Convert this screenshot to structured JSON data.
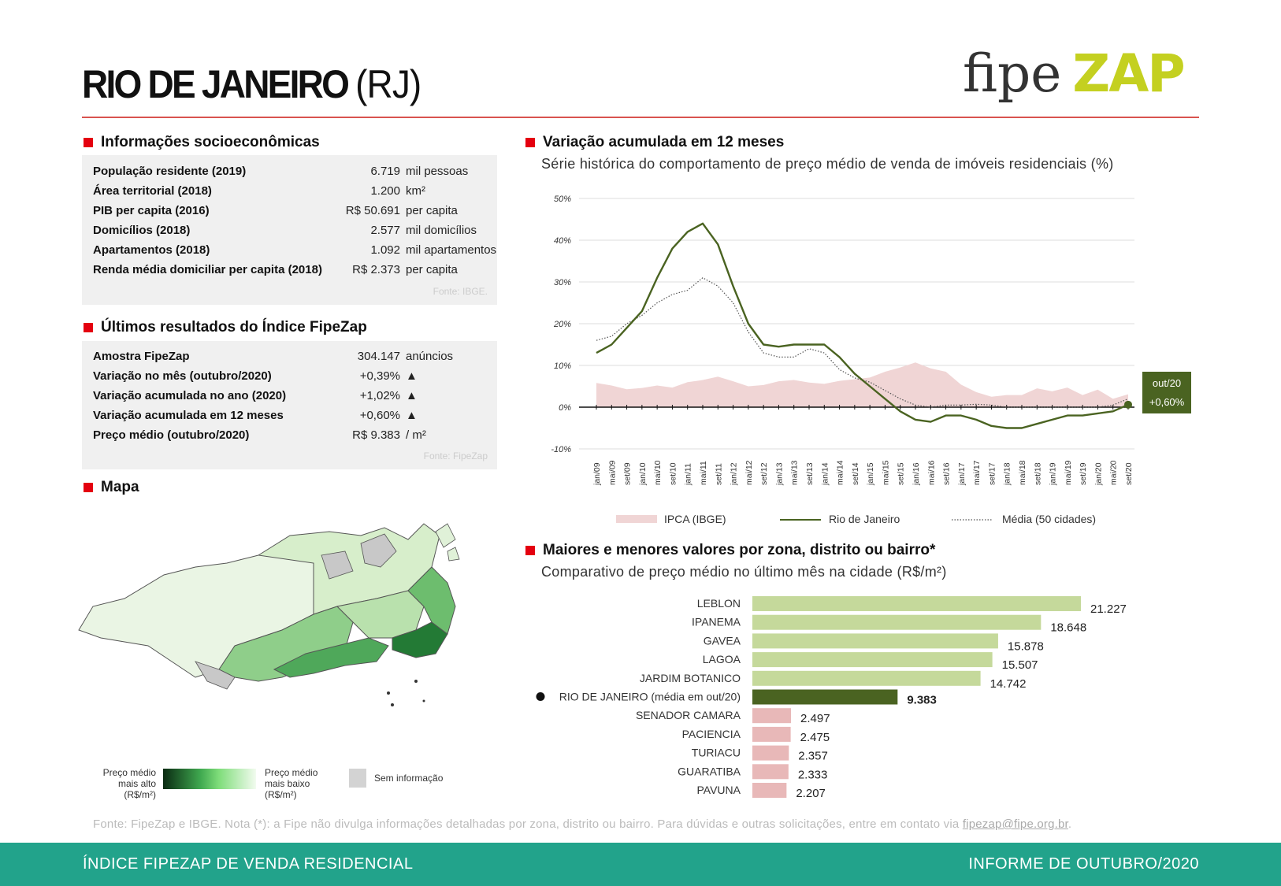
{
  "header": {
    "city": "RIO DE JANEIRO",
    "state": "(RJ)",
    "logo_fipe": "fipe",
    "logo_zap": "ZAP",
    "accent_color": "#e4000f"
  },
  "socio": {
    "title": "Informações socioeconômicas",
    "rows": [
      {
        "label": "População residente (2019)",
        "value": "6.719",
        "unit": "mil pessoas"
      },
      {
        "label": "Área territorial (2018)",
        "value": "1.200",
        "unit": "km²"
      },
      {
        "label": "PIB per capita (2016)",
        "value": "R$ 50.691",
        "unit": "per capita"
      },
      {
        "label": "Domicílios (2018)",
        "value": "2.577",
        "unit": "mil domicílios"
      },
      {
        "label": "Apartamentos (2018)",
        "value": "1.092",
        "unit": "mil apartamentos"
      },
      {
        "label": "Renda média domiciliar per capita (2018)",
        "value": "R$ 2.373",
        "unit": "per capita"
      }
    ],
    "source": "Fonte: IBGE."
  },
  "index": {
    "title": "Últimos resultados do Índice FipeZap",
    "rows": [
      {
        "label": "Amostra FipeZap",
        "value": "304.147",
        "unit": "anúncios"
      },
      {
        "label": "Variação no mês (outubro/2020)",
        "value": "+0,39%",
        "unit": "▲"
      },
      {
        "label": "Variação acumulada no ano (2020)",
        "value": "+1,02%",
        "unit": "▲"
      },
      {
        "label": "Variação acumulada em 12 meses",
        "value": "+0,60%",
        "unit": "▲"
      },
      {
        "label": "Preço médio (outubro/2020)",
        "value": "R$ 9.383",
        "unit": "/ m²"
      }
    ],
    "source": "Fonte: FipeZap"
  },
  "map": {
    "title": "Mapa",
    "legend_high": "Preço médio mais alto (R$/m²)",
    "legend_low": "Preço médio mais baixo (R$/m²)",
    "legend_na": "Sem informação"
  },
  "chart_data": [
    {
      "type": "line",
      "title": "Variação acumulada em 12 meses",
      "subtitle": "Série histórica do comportamento de preço médio de venda de imóveis residenciais (%)",
      "y_ticks": [
        "50%",
        "40%",
        "30%",
        "20%",
        "10%",
        "0%",
        "-10%"
      ],
      "ylim": [
        -10,
        50
      ],
      "x_ticks": [
        "jan/09",
        "mai/09",
        "set/09",
        "jan/10",
        "mai/10",
        "set/10",
        "jan/11",
        "mai/11",
        "set/11",
        "jan/12",
        "mai/12",
        "set/12",
        "jan/13",
        "mai/13",
        "set/13",
        "jan/14",
        "mai/14",
        "set/14",
        "jan/15",
        "mai/15",
        "set/15",
        "jan/16",
        "mai/16",
        "set/16",
        "jan/17",
        "mai/17",
        "set/17",
        "jan/18",
        "mai/18",
        "set/18",
        "jan/19",
        "mai/19",
        "set/19",
        "jan/20",
        "mai/20",
        "set/20"
      ],
      "series": [
        {
          "name": "IPCA (IBGE)",
          "kind": "area",
          "color": "#f0d5d5",
          "values": [
            5.8,
            5.2,
            4.3,
            4.6,
            5.2,
            4.7,
            6.0,
            6.5,
            7.3,
            6.2,
            5.0,
            5.3,
            6.2,
            6.5,
            5.9,
            5.6,
            6.3,
            6.7,
            7.1,
            8.5,
            9.5,
            10.7,
            9.3,
            8.5,
            5.4,
            3.6,
            2.5,
            2.9,
            2.9,
            4.5,
            3.8,
            4.7,
            2.9,
            4.2,
            2.0,
            3.1
          ]
        },
        {
          "name": "Rio de Janeiro",
          "kind": "line",
          "color": "#4a6321",
          "values": [
            13,
            15,
            19,
            23,
            31,
            38,
            42,
            44,
            39,
            29,
            20,
            15,
            14.5,
            15,
            15,
            15,
            12,
            8,
            5,
            2,
            -1,
            -3,
            -3.5,
            -2,
            -2,
            -3,
            -4.5,
            -5,
            -5,
            -4,
            -3,
            -2,
            -2,
            -1.5,
            -1,
            0.6
          ]
        },
        {
          "name": "Média (50 cidades)",
          "kind": "dotted",
          "color": "#555",
          "values": [
            16,
            17,
            20,
            22,
            25,
            27,
            28,
            31,
            29,
            25,
            18,
            13,
            12,
            12,
            14,
            13,
            9,
            7,
            6,
            4,
            2,
            0.5,
            0,
            0.5,
            0.5,
            0.7,
            0.5,
            0,
            0,
            0,
            0,
            0,
            0,
            0,
            0.5,
            2
          ]
        }
      ],
      "end_label_period": "out/20",
      "end_label_value": "+0,60%"
    },
    {
      "type": "bar",
      "title": "Maiores e menores valores por zona, distrito ou bairro*",
      "subtitle": "Comparativo de preço médio no último mês na cidade (R$/m²)",
      "categories": [
        "LEBLON",
        "IPANEMA",
        "GAVEA",
        "LAGOA",
        "JARDIM BOTANICO",
        "RIO DE JANEIRO (média em out/20)",
        "SENADOR CAMARA",
        "PACIENCIA",
        "TURIACU",
        "GUARATIBA",
        "PAVUNA"
      ],
      "values": [
        21227,
        18648,
        15878,
        15507,
        14742,
        9383,
        2497,
        2475,
        2357,
        2333,
        2207
      ],
      "labels": [
        "21.227",
        "18.648",
        "15.878",
        "15.507",
        "14.742",
        "9.383",
        "2.497",
        "2.475",
        "2.357",
        "2.333",
        "2.207"
      ],
      "groups": [
        "high",
        "high",
        "high",
        "high",
        "high",
        "avg",
        "low",
        "low",
        "low",
        "low",
        "low"
      ],
      "colors": {
        "high": "#c5d99b",
        "avg": "#4a6321",
        "low": "#e8b8b8"
      }
    }
  ],
  "note": {
    "text": "Fonte: FipeZap e IBGE. Nota (*): a Fipe não divulga informações detalhadas por zona, distrito ou bairro. Para dúvidas e outras solicitações, entre em contato via ",
    "email": "fipezap@fipe.org.br",
    "end": "."
  },
  "footer": {
    "left": "ÍNDICE FIPEZAP DE VENDA RESIDENCIAL",
    "right": "INFORME DE OUTUBRO/2020",
    "color": "#22a38b"
  }
}
